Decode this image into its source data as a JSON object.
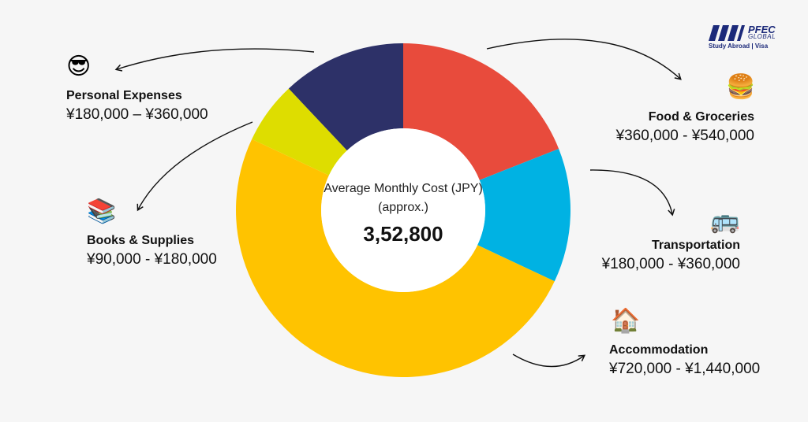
{
  "chart_data": {
    "type": "pie",
    "center_title": "Average Monthly Cost (JPY) (approx.)",
    "center_value": "3,52,800",
    "slices": [
      {
        "name": "Food & Groceries",
        "range": "¥360,000 - ¥540,000",
        "share": 0.19,
        "color": "#e84b3c",
        "icon": "hamburger-icon",
        "emoji": "🍔"
      },
      {
        "name": "Transportation",
        "range": "¥180,000 - ¥360,000",
        "share": 0.13,
        "color": "#00b2e3",
        "icon": "bus-icon",
        "emoji": "🚌"
      },
      {
        "name": "Accommodation",
        "range": "¥720,000 - ¥1,440,000",
        "share": 0.5,
        "color": "#ffc300",
        "icon": "house-icon",
        "emoji": "🏠"
      },
      {
        "name": "Books & Supplies",
        "range": "¥90,000 - ¥180,000",
        "share": 0.06,
        "color": "#dedd00",
        "icon": "books-icon",
        "emoji": "📚"
      },
      {
        "name": "Personal Expenses",
        "range": "¥180,000 – ¥360,000",
        "share": 0.12,
        "color": "#2d3168",
        "icon": "sunglasses-face-icon",
        "emoji": "😎"
      }
    ]
  },
  "logo": {
    "brand": "PFEC",
    "sub": "GLOBAL",
    "tagline": "Study Abroad | Visa",
    "color": "#1c2a7a"
  }
}
